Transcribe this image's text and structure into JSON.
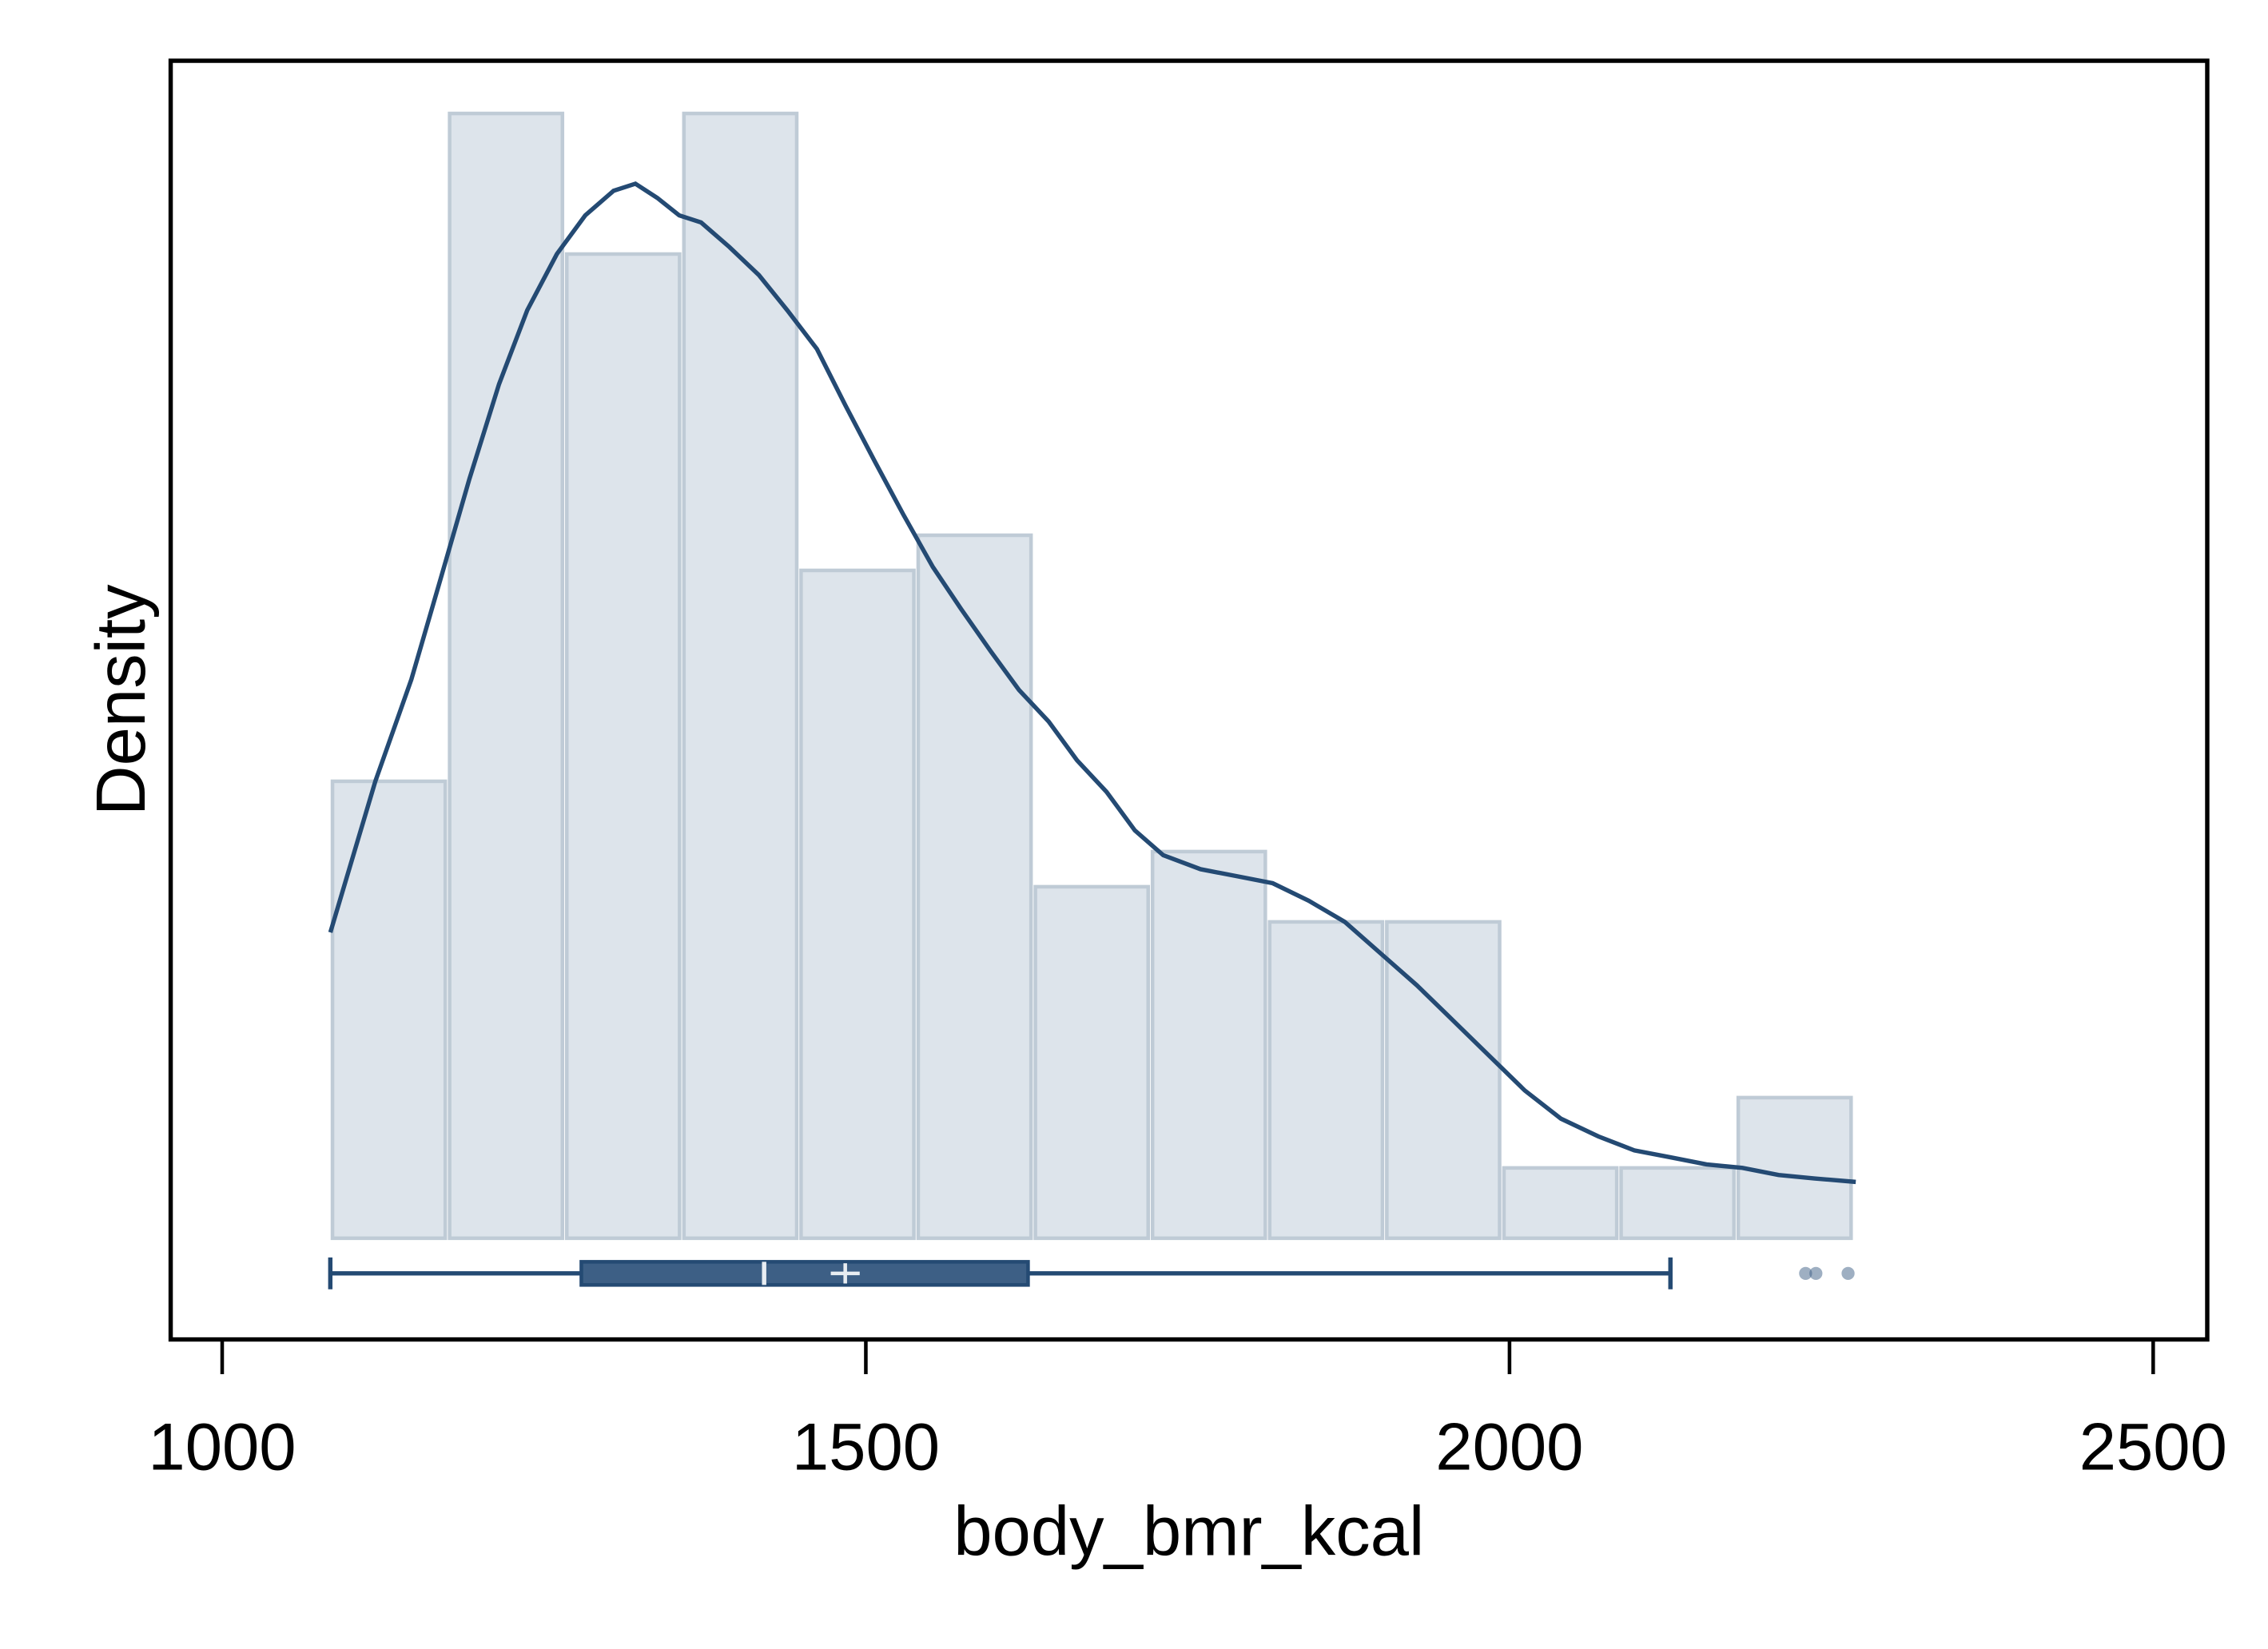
{
  "chart_data": {
    "type": "histogram",
    "x_label": "body_bmr_kcal",
    "y_label": "Density",
    "bins": [
      1084,
      1175,
      1266,
      1357,
      1448,
      1539,
      1630,
      1721,
      1812,
      1903,
      1994,
      2085,
      2176,
      2267
    ],
    "values": [
      13,
      32,
      28,
      32,
      19,
      20,
      10,
      11,
      9,
      9,
      2,
      2,
      4
    ],
    "color": "#dde4eb",
    "edge_color": "#bfcbd6",
    "xlim": [
      960,
      2542
    ],
    "ylim": [
      -2.88,
      33.5
    ],
    "xticks": [
      1000,
      1500,
      2000,
      2500
    ],
    "density": {
      "color": "#244a73",
      "x": [
        1084,
        1119,
        1147,
        1170,
        1192,
        1215,
        1237,
        1260,
        1282,
        1304,
        1321,
        1338,
        1355,
        1372,
        1394,
        1417,
        1439,
        1462,
        1484,
        1507,
        1529,
        1552,
        1574,
        1597,
        1619,
        1642,
        1664,
        1687,
        1709,
        1731,
        1760,
        1788,
        1816,
        1844,
        1872,
        1900,
        1928,
        1956,
        1984,
        2012,
        2040,
        2069,
        2097,
        2125,
        2153,
        2181,
        2209,
        2237,
        2269
      ],
      "y": [
        8.7,
        13.0,
        15.9,
        18.8,
        21.6,
        24.3,
        26.4,
        28.0,
        29.1,
        29.8,
        30.0,
        29.6,
        29.1,
        28.9,
        28.2,
        27.4,
        26.4,
        25.3,
        23.7,
        22.1,
        20.6,
        19.1,
        17.9,
        16.7,
        15.6,
        14.7,
        13.6,
        12.7,
        11.6,
        10.9,
        10.5,
        10.3,
        10.1,
        9.6,
        9.0,
        8.1,
        7.2,
        6.2,
        5.2,
        4.2,
        3.4,
        2.9,
        2.5,
        2.3,
        2.1,
        2.0,
        1.8,
        1.7,
        1.6
      ]
    },
    "boxplot": {
      "color": "#3d5f85",
      "whisker_low": 1084,
      "q1": 1279,
      "median": 1421,
      "mean": 1484,
      "q3": 1626,
      "whisker_high": 2125,
      "outliers": [
        2230,
        2238,
        2263
      ]
    }
  }
}
